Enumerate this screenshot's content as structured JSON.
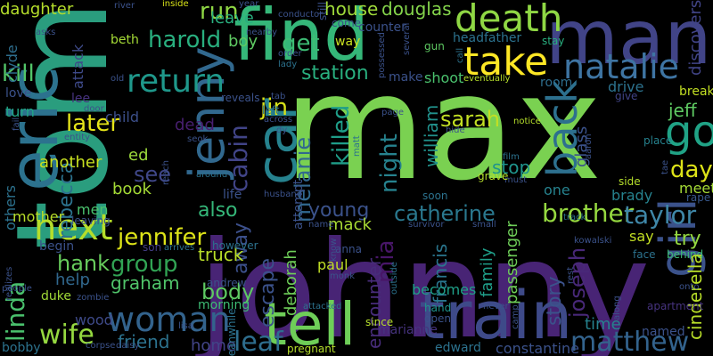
{
  "background": "#000000",
  "words": [
    {
      "text": "max",
      "color": "#7ad151"
    },
    {
      "text": "tom",
      "color": "#2a9d7e"
    },
    {
      "text": "johnny",
      "color": "#482475"
    },
    {
      "text": "eric",
      "color": "#2c728e"
    },
    {
      "text": "find",
      "color": "#35b779"
    },
    {
      "text": "man",
      "color": "#414487"
    },
    {
      "text": "train",
      "color": "#3e4a89"
    },
    {
      "text": "tell",
      "color": "#6ece58"
    },
    {
      "text": "death",
      "color": "#8fd744"
    },
    {
      "text": "jenny",
      "color": "#31688e"
    },
    {
      "text": "car",
      "color": "#26828e"
    },
    {
      "text": "take",
      "color": "#fde725"
    },
    {
      "text": "natalie",
      "color": "#3e74a2"
    },
    {
      "text": "girl",
      "color": "#3b528b"
    },
    {
      "text": "woman",
      "color": "#33638d"
    },
    {
      "text": "go",
      "color": "#20a386"
    },
    {
      "text": "back",
      "color": "#2d708e"
    },
    {
      "text": "next",
      "color": "#b5de2b"
    },
    {
      "text": "return",
      "color": "#1f988b"
    },
    {
      "text": "jennifer",
      "color": "#dde318"
    },
    {
      "text": "harold",
      "color": "#29af7f"
    },
    {
      "text": "brother",
      "color": "#95d840"
    },
    {
      "text": "catherine",
      "color": "#2a788e"
    },
    {
      "text": "taylor",
      "color": "#3f87a8"
    },
    {
      "text": "linda",
      "color": "#4ac16d"
    },
    {
      "text": "group",
      "color": "#31a354"
    },
    {
      "text": "hank",
      "color": "#67cc5c"
    },
    {
      "text": "wife",
      "color": "#95d840"
    },
    {
      "text": "leaf",
      "color": "#2e6e8e"
    },
    {
      "text": "matthew",
      "color": "#33638d"
    },
    {
      "text": "killed",
      "color": "#1f9e89"
    },
    {
      "text": "later",
      "color": "#e5e419"
    },
    {
      "text": "kill",
      "color": "#52c569"
    },
    {
      "text": "get",
      "color": "#3dbc74"
    },
    {
      "text": "jin",
      "color": "#d8e219"
    },
    {
      "text": "station",
      "color": "#29af7f"
    },
    {
      "text": "house",
      "color": "#9fda3a"
    },
    {
      "text": "douglas",
      "color": "#84d44b"
    },
    {
      "text": "run",
      "color": "#8fd744"
    },
    {
      "text": "cabin",
      "color": "#414487"
    },
    {
      "text": "melanie",
      "color": "#31688e"
    },
    {
      "text": "sarah",
      "color": "#c2df23"
    },
    {
      "text": "night",
      "color": "#26828e"
    },
    {
      "text": "william",
      "color": "#21918c"
    },
    {
      "text": "stop",
      "color": "#1f948c"
    },
    {
      "text": "day",
      "color": "#dde318"
    },
    {
      "text": "jeff",
      "color": "#5ec962"
    },
    {
      "text": "try",
      "color": "#94d840"
    },
    {
      "text": "young",
      "color": "#3b528b"
    },
    {
      "text": "also",
      "color": "#35b779"
    },
    {
      "text": "away",
      "color": "#3c508b"
    },
    {
      "text": "body",
      "color": "#5ec962"
    },
    {
      "text": "truck",
      "color": "#b8de29"
    },
    {
      "text": "graham",
      "color": "#50c46a"
    },
    {
      "text": "see",
      "color": "#3f4788"
    },
    {
      "text": "ed",
      "color": "#9bd93c"
    },
    {
      "text": "book",
      "color": "#a5db36"
    },
    {
      "text": "rebecca",
      "color": "#2c728e"
    },
    {
      "text": "another",
      "color": "#c8e020"
    },
    {
      "text": "friend",
      "color": "#2c728e"
    },
    {
      "text": "francis",
      "color": "#2a768e"
    },
    {
      "text": "joseph",
      "color": "#482878"
    },
    {
      "text": "story",
      "color": "#3b528b"
    },
    {
      "text": "paul",
      "color": "#c0df25"
    },
    {
      "text": "escape",
      "color": "#3b528b"
    },
    {
      "text": "mack",
      "color": "#a8db34"
    },
    {
      "text": "deborah",
      "color": "#6ece58"
    },
    {
      "text": "attempt",
      "color": "#3b528b"
    },
    {
      "text": "encounter",
      "color": "#472c7a"
    },
    {
      "text": "becomes",
      "color": "#1fa088"
    },
    {
      "text": "family",
      "color": "#1f9e89"
    },
    {
      "text": "passenger",
      "color": "#6ece58"
    },
    {
      "text": "marianne",
      "color": "#46337e"
    },
    {
      "text": "constantine",
      "color": "#3b528b"
    },
    {
      "text": "edward",
      "color": "#2c728e"
    },
    {
      "text": "time",
      "color": "#26828e"
    },
    {
      "text": "mia",
      "color": "#481668"
    },
    {
      "text": "child",
      "color": "#3c4f8a"
    },
    {
      "text": "dead",
      "color": "#481f70"
    },
    {
      "text": "leave",
      "color": "#29af7f"
    },
    {
      "text": "boy",
      "color": "#5ec962"
    },
    {
      "text": "beth",
      "color": "#a5db36"
    },
    {
      "text": "daughter",
      "color": "#b5de2b"
    },
    {
      "text": "clyde",
      "color": "#2e6e8e"
    },
    {
      "text": "attack",
      "color": "#3e4a89"
    },
    {
      "text": "turn",
      "color": "#21a585"
    },
    {
      "text": "love",
      "color": "#3b528b"
    },
    {
      "text": "lee",
      "color": "#46327e"
    },
    {
      "text": "others",
      "color": "#2c728e"
    },
    {
      "text": "mother",
      "color": "#b8de29"
    },
    {
      "text": "men",
      "color": "#4ac16d"
    },
    {
      "text": "help",
      "color": "#31688e"
    },
    {
      "text": "begin",
      "color": "#3b528b"
    },
    {
      "text": "duke",
      "color": "#a2da37"
    },
    {
      "text": "wood",
      "color": "#3e4a89"
    },
    {
      "text": "bobby",
      "color": "#2c728e"
    },
    {
      "text": "home",
      "color": "#414487"
    },
    {
      "text": "morning",
      "color": "#3dbc74"
    },
    {
      "text": "leaving",
      "color": "#3b528b"
    },
    {
      "text": "however",
      "color": "#2c728e"
    },
    {
      "text": "life",
      "color": "#3b528b"
    },
    {
      "text": "son",
      "color": "#433e85"
    },
    {
      "text": "andrew",
      "color": "#3b528b"
    },
    {
      "text": "brady",
      "color": "#26828e"
    },
    {
      "text": "meet",
      "color": "#a5db36"
    },
    {
      "text": "rape",
      "color": "#38588c"
    },
    {
      "text": "say",
      "color": "#c2df23"
    },
    {
      "text": "face",
      "color": "#2c728e"
    },
    {
      "text": "behind",
      "color": "#3dbc74"
    },
    {
      "text": "cinderella",
      "color": "#b8de29"
    },
    {
      "text": "apartment",
      "color": "#46337e"
    },
    {
      "text": "named",
      "color": "#3b528b"
    },
    {
      "text": "hand",
      "color": "#1f948c"
    },
    {
      "text": "pregnant",
      "color": "#b5de2b"
    },
    {
      "text": "discovers",
      "color": "#414487"
    },
    {
      "text": "break",
      "color": "#c2df23"
    },
    {
      "text": "place",
      "color": "#26828e"
    },
    {
      "text": "drive",
      "color": "#2c728e"
    },
    {
      "text": "give",
      "color": "#414487"
    },
    {
      "text": "glass",
      "color": "#3b528b"
    },
    {
      "text": "one",
      "color": "#26828e"
    },
    {
      "text": "soon",
      "color": "#2c728e"
    },
    {
      "text": "room",
      "color": "#2e6e8e"
    },
    {
      "text": "make",
      "color": "#3b528b"
    },
    {
      "text": "shoot",
      "color": "#4ac16d"
    },
    {
      "text": "way",
      "color": "#c8e020"
    },
    {
      "text": "come",
      "color": "#3b528b"
    },
    {
      "text": "headfather",
      "color": "#2c728e"
    },
    {
      "text": "stay",
      "color": "#29af7f"
    },
    {
      "text": "counter",
      "color": "#3b528b"
    },
    {
      "text": "gun",
      "color": "#5ec962"
    },
    {
      "text": "still",
      "color": "#3b528b"
    },
    {
      "text": "order",
      "color": "#3b528b"
    },
    {
      "text": "lady",
      "color": "#2c728e"
    },
    {
      "text": "possessed",
      "color": "#3b528b"
    },
    {
      "text": "several",
      "color": "#3b528b"
    },
    {
      "text": "call",
      "color": "#2c728e"
    },
    {
      "text": "eventually",
      "color": "#b5de2b"
    },
    {
      "text": "reveals",
      "color": "#3b528b"
    },
    {
      "text": "left",
      "color": "#2c728e"
    },
    {
      "text": "across",
      "color": "#3b528b"
    },
    {
      "text": "dy",
      "color": "#3b528b"
    },
    {
      "text": "matt",
      "color": "#2c728e"
    },
    {
      "text": "page",
      "color": "#3b528b"
    },
    {
      "text": "hide",
      "color": "#3b528b"
    },
    {
      "text": "notice",
      "color": "#b5de2b"
    },
    {
      "text": "film",
      "color": "#2c728e"
    },
    {
      "text": "must",
      "color": "#3b528b"
    },
    {
      "text": "grave",
      "color": "#b5de2b"
    },
    {
      "text": "aaron",
      "color": "#3b528b"
    },
    {
      "text": "side",
      "color": "#b5de2b"
    },
    {
      "text": "tae",
      "color": "#3b528b"
    },
    {
      "text": "track",
      "color": "#2c728e"
    },
    {
      "text": "kowalski",
      "color": "#3b528b"
    },
    {
      "text": "small",
      "color": "#3b528b"
    },
    {
      "text": "survivor",
      "color": "#3b528b"
    },
    {
      "text": "anna",
      "color": "#3b528b"
    },
    {
      "text": "know",
      "color": "#3b528b"
    },
    {
      "text": "monk",
      "color": "#3b528b"
    },
    {
      "text": "outside",
      "color": "#2c728e"
    },
    {
      "text": "since",
      "color": "#b5de2b"
    },
    {
      "text": "open",
      "color": "#3b528b"
    },
    {
      "text": "attacked",
      "color": "#2c728e"
    },
    {
      "text": "name",
      "color": "#3b528b"
    },
    {
      "text": "husband",
      "color": "#3b528b"
    },
    {
      "text": "around",
      "color": "#2c728e"
    },
    {
      "text": "seok",
      "color": "#3b528b"
    },
    {
      "text": "reach",
      "color": "#3b528b"
    },
    {
      "text": "entity",
      "color": "#3b528b"
    },
    {
      "text": "door",
      "color": "#3b528b"
    },
    {
      "text": "fail",
      "color": "#3b528b"
    },
    {
      "text": "people",
      "color": "#3b528b"
    },
    {
      "text": "realizes",
      "color": "#3b528b"
    },
    {
      "text": "zombie",
      "color": "#3b528b"
    },
    {
      "text": "arrives",
      "color": "#2c728e"
    },
    {
      "text": "corpse",
      "color": "#3b528b"
    },
    {
      "text": "daisy",
      "color": "#3b528b"
    },
    {
      "text": "lisa",
      "color": "#3b528b"
    },
    {
      "text": "meanwhile",
      "color": "#2c728e"
    },
    {
      "text": "river",
      "color": "#3b528b"
    },
    {
      "text": "inside",
      "color": "#d8e219"
    },
    {
      "text": "year",
      "color": "#3b528b"
    },
    {
      "text": "conductor",
      "color": "#3b528b"
    },
    {
      "text": "asks",
      "color": "#3b528b"
    },
    {
      "text": "nearby",
      "color": "#3b528b"
    },
    {
      "text": "old",
      "color": "#3b528b"
    },
    {
      "text": "tab",
      "color": "#3b528b"
    },
    {
      "text": "never",
      "color": "#3b528b"
    },
    {
      "text": "rest",
      "color": "#3b528b"
    },
    {
      "text": "along",
      "color": "#3b528b"
    },
    {
      "text": "onto",
      "color": "#3b528b"
    },
    {
      "text": "camp",
      "color": "#3b528b"
    }
  ]
}
